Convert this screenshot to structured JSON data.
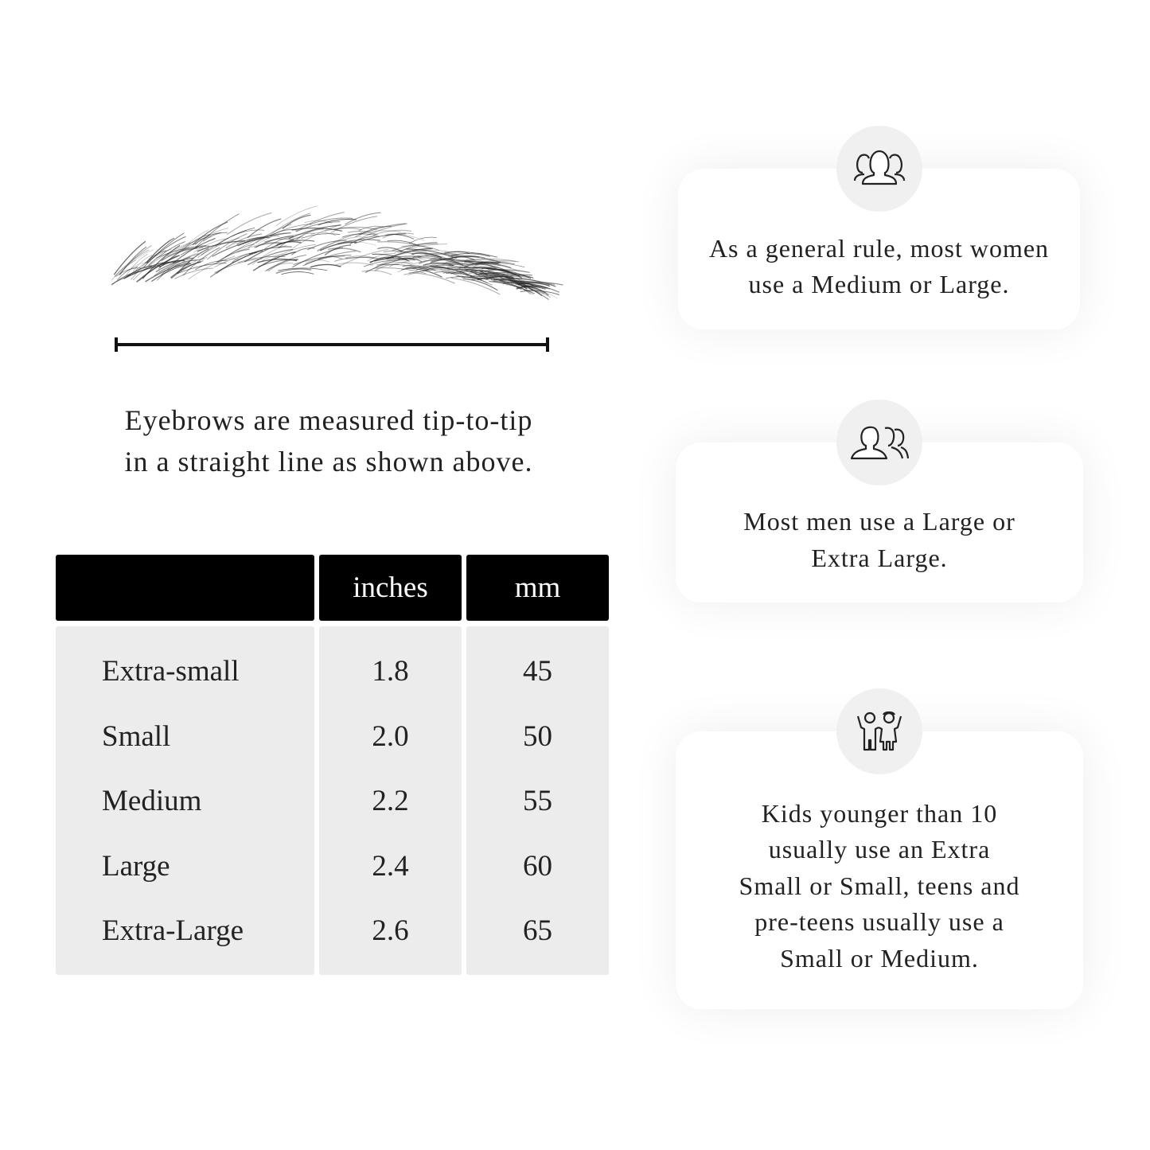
{
  "measurement_note": "Eyebrows are measured tip-to-tip in a straight line as shown above.",
  "measurement_note_lines": [
    "Eyebrows are measured tip-to-tip",
    "in a straight line as shown above."
  ],
  "table": {
    "headers": [
      "",
      "inches",
      "mm"
    ],
    "rows": [
      {
        "size": "Extra-small",
        "inches": "1.8",
        "mm": "45"
      },
      {
        "size": "Small",
        "inches": "2.0",
        "mm": "50"
      },
      {
        "size": "Medium",
        "inches": "2.2",
        "mm": "55"
      },
      {
        "size": "Large",
        "inches": "2.4",
        "mm": "60"
      },
      {
        "size": "Extra-Large",
        "inches": "2.6",
        "mm": "65"
      }
    ]
  },
  "cards": [
    {
      "icon": "women-group-icon",
      "lines": [
        "As a general rule, most women",
        "use a Medium or Large."
      ]
    },
    {
      "icon": "men-group-icon",
      "lines": [
        "Most men use a Large or",
        "Extra Large."
      ]
    },
    {
      "icon": "kids-icon",
      "lines": [
        "Kids younger than 10",
        "usually use an Extra",
        "Small or Small, teens and",
        "pre-teens usually use a",
        "Small or Medium."
      ]
    }
  ]
}
